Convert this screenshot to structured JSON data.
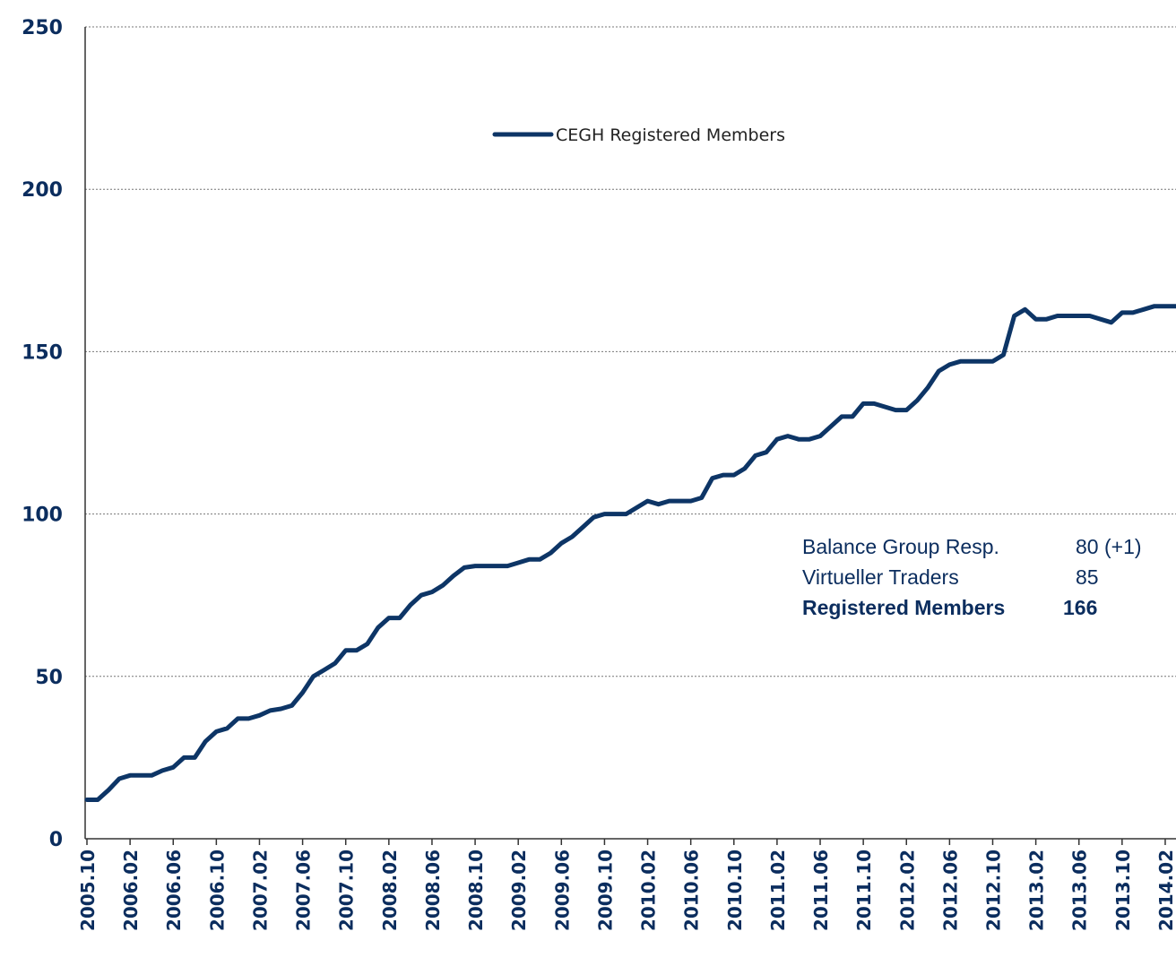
{
  "chart_data": {
    "type": "line",
    "categories": [
      "2005.10",
      null,
      null,
      null,
      "2006.02",
      null,
      null,
      null,
      "2006.06",
      null,
      null,
      null,
      "2006.10",
      null,
      null,
      null,
      "2007.02",
      null,
      null,
      null,
      "2007.06",
      null,
      null,
      null,
      "2007.10",
      null,
      null,
      null,
      "2008.02",
      null,
      null,
      null,
      "2008.06",
      null,
      null,
      null,
      "2008.10",
      null,
      null,
      null,
      "2009.02",
      null,
      null,
      null,
      "2009.06",
      null,
      null,
      null,
      "2009.10",
      null,
      null,
      null,
      "2010.02",
      null,
      null,
      null,
      "2010.06",
      null,
      null,
      null,
      "2010.10",
      null,
      null,
      null,
      "2011.02",
      null,
      null,
      null,
      "2011.06",
      null,
      null,
      null,
      "2011.10",
      null,
      null,
      null,
      "2012.02",
      null,
      null,
      null,
      "2012.06",
      null,
      null,
      null,
      "2012.10",
      null,
      null,
      null,
      "2013.02",
      null,
      null,
      null,
      "2013.06",
      null,
      null,
      null,
      "2013.10",
      null,
      null,
      null,
      "2014.02",
      null
    ],
    "series": [
      {
        "name": "CEGH Registered Members",
        "color": "#0d3566",
        "values": [
          12,
          12,
          15,
          18.5,
          19.5,
          19.5,
          19.5,
          21,
          22,
          25,
          25,
          30,
          33,
          34,
          37,
          37,
          38,
          39.5,
          40,
          41,
          45,
          50,
          52,
          54,
          58,
          58,
          60,
          65,
          68,
          68,
          72,
          75,
          76,
          78,
          81,
          83.5,
          84,
          84,
          84,
          84,
          85,
          86,
          86,
          88,
          91,
          93,
          96,
          99,
          100,
          100,
          100,
          102,
          104,
          103,
          104,
          104,
          104,
          105,
          111,
          112,
          112,
          114,
          118,
          119,
          123,
          124,
          123,
          123,
          124,
          127,
          130,
          130,
          134,
          134,
          133,
          132,
          132,
          135,
          139,
          144,
          146,
          147,
          147,
          147,
          147,
          149,
          161,
          163,
          160,
          160,
          161,
          161,
          161,
          161,
          160,
          159,
          162,
          162,
          163,
          164,
          164,
          164
        ]
      }
    ],
    "ylim": [
      0,
      250
    ],
    "yticks": [
      0,
      50,
      100,
      150,
      200,
      250
    ],
    "grid": true,
    "legend": "top",
    "annotations": [
      [
        "Balance Group Resp.",
        "80 (+1)"
      ],
      [
        "Virtueller Traders",
        "85"
      ],
      [
        "Registered Members",
        "166"
      ]
    ]
  }
}
